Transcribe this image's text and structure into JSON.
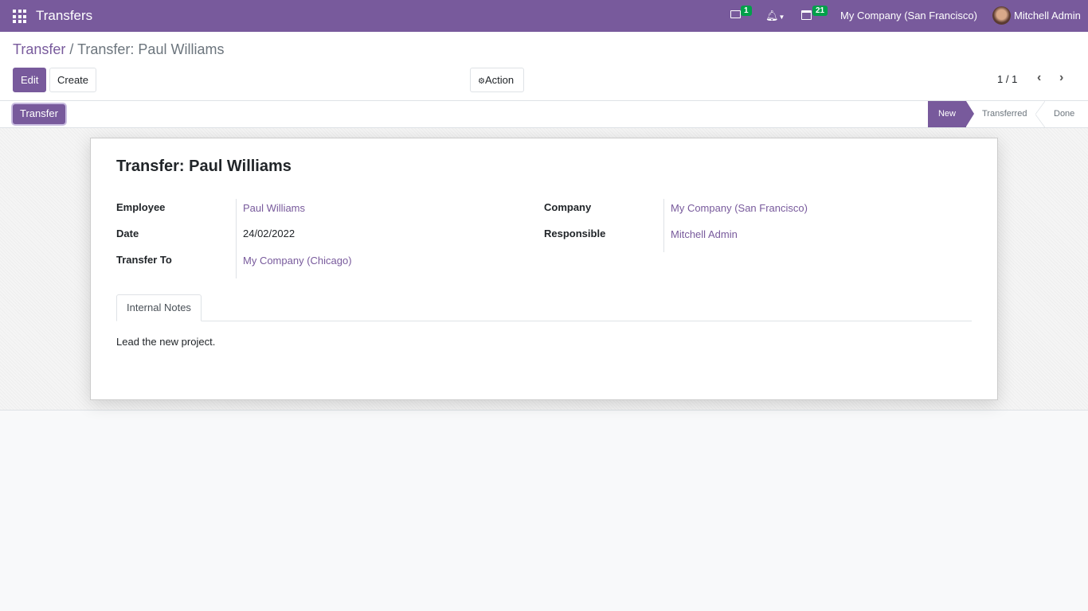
{
  "nav": {
    "app_title": "Transfers",
    "messages_count": "1",
    "activities_count": "21",
    "company": "My Company (San Francisco)",
    "user": "Mitchell Admin"
  },
  "breadcrumb": {
    "parent": "Transfer",
    "separator": "/",
    "current": "Transfer: Paul Williams"
  },
  "toolbar": {
    "edit": "Edit",
    "create": "Create",
    "action": "Action",
    "pager": "1 / 1"
  },
  "statusbar": {
    "transfer_button": "Transfer",
    "stages": [
      "New",
      "Transferred",
      "Done"
    ],
    "active_stage": "New"
  },
  "form": {
    "title": "Transfer: Paul Williams",
    "employee_label": "Employee",
    "employee": "Paul Williams",
    "date_label": "Date",
    "date": "24/02/2022",
    "transfer_to_label": "Transfer To",
    "transfer_to": "My Company (Chicago)",
    "company_label": "Company",
    "company": "My Company (San Francisco)",
    "responsible_label": "Responsible",
    "responsible": "Mitchell Admin",
    "tab": "Internal Notes",
    "notes": "Lead the new project."
  },
  "colors": {
    "brand": "#785a9c",
    "badge": "#00a04a"
  }
}
